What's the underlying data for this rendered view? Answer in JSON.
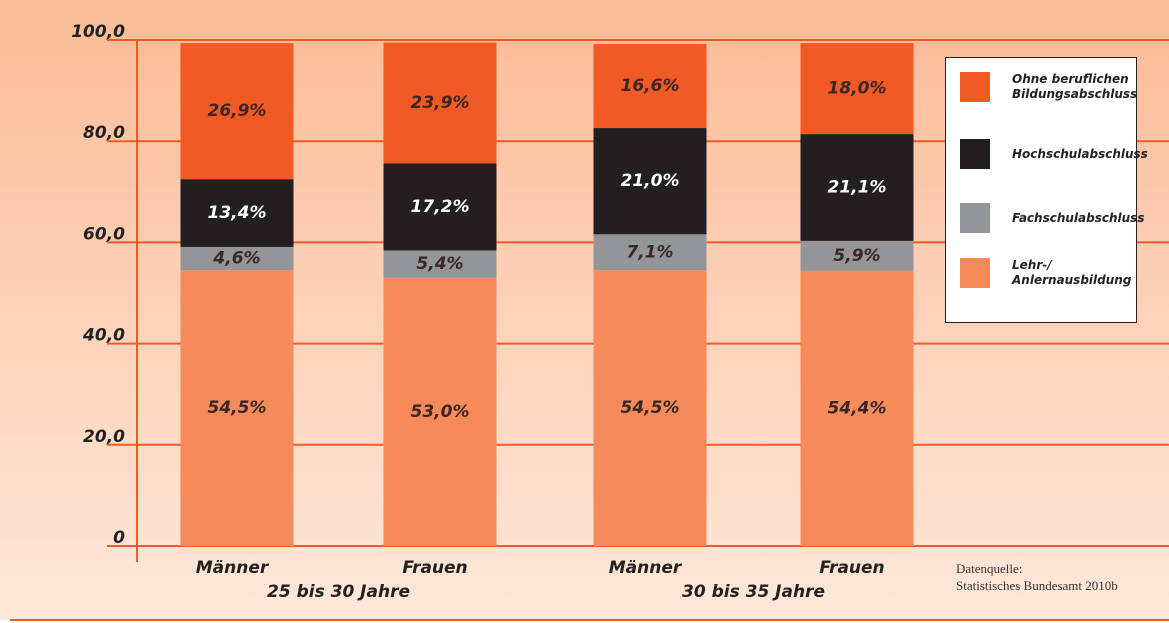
{
  "chart_data": {
    "type": "stacked_bar",
    "categories": [
      "Männer",
      "Frauen",
      "Männer",
      "Frauen"
    ],
    "groups": [
      "25 bis 30 Jahre",
      "30 bis 35 Jahre"
    ],
    "series": [
      {
        "name": "Lehr-/ Anlernausbildung",
        "color": "#f58b5b",
        "values": [
          54.5,
          53.0,
          54.5,
          54.4
        ],
        "value_labels": [
          "54,5%",
          "53,0%",
          "54,5%",
          "54,4%"
        ]
      },
      {
        "name": "Fachschulabschluss",
        "color": "#939598",
        "values": [
          4.6,
          5.4,
          7.1,
          5.9
        ],
        "value_labels": [
          "4,6%",
          "5,4%",
          "7,1%",
          "5,9%"
        ]
      },
      {
        "name": "Hochschulabschluss",
        "color": "#231f20",
        "values": [
          13.4,
          17.2,
          21.0,
          21.1
        ],
        "value_labels": [
          "13,4%",
          "17,2%",
          "21,0%",
          "21,1%"
        ]
      },
      {
        "name": "Ohne beruflichen Bildungsabschluss",
        "color": "#f15a24",
        "values": [
          26.9,
          23.9,
          16.6,
          18.0
        ],
        "value_labels": [
          "26,9%",
          "23,9%",
          "16,6%",
          "18,0%"
        ]
      }
    ],
    "ylim": [
      0,
      100
    ],
    "yticks": [
      0,
      {
        "value": 20,
        "label": "20,0"
      },
      {
        "value": 40,
        "label": "40,0"
      },
      {
        "value": 60,
        "label": "60,0"
      },
      {
        "value": 80,
        "label": "80,0"
      },
      {
        "value": 100,
        "label": "100,0"
      }
    ],
    "grid": true,
    "source": [
      "Datenquelle:",
      "Statistisches Bundesamt 2010b"
    ]
  }
}
